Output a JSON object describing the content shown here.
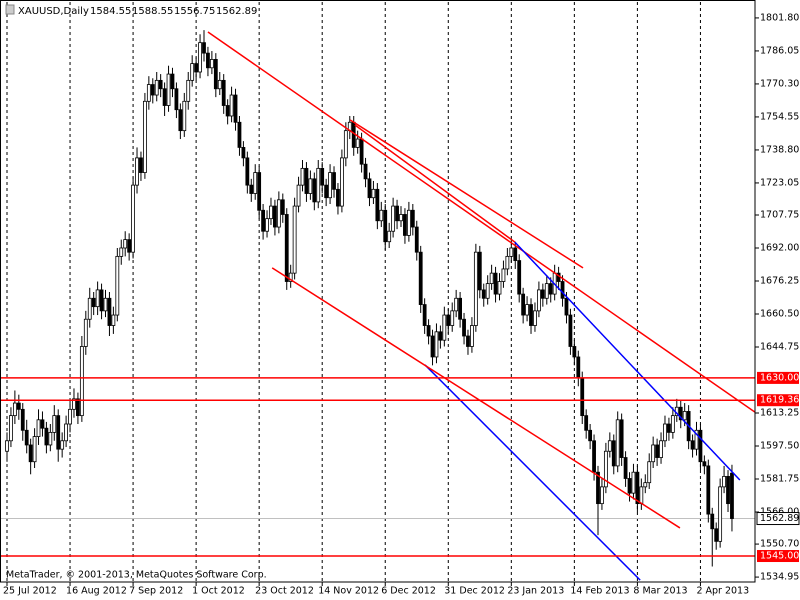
{
  "chart_data": {
    "type": "candlestick",
    "symbol": "XAUUSD,Daily",
    "copyright": "MetaTrader, © 2001-2013, MetaQuotes Software Corp.",
    "ylim": [
      1532.6,
      1809.4
    ],
    "yticks": [
      {
        "value": 1801.8,
        "label": "1801.80"
      },
      1786.05,
      {
        "value": 1770.3,
        "label": "1770.30"
      },
      1754.55,
      {
        "value": 1738.8,
        "label": "1738.80"
      },
      1723.05,
      1707.75,
      {
        "value": 1692,
        "label": "1692.00"
      },
      1676.25,
      {
        "value": 1660.5,
        "label": "1660.50"
      },
      1644.75,
      1613.25,
      {
        "value": 1597.5,
        "label": "1597.50"
      },
      1581.75,
      {
        "value": 1566,
        "label": "1566.00"
      },
      {
        "value": 1550.7,
        "label": "1550.70"
      },
      1534.95
    ],
    "xlabels": [
      {
        "index": 0,
        "label": "25 Jul 2012"
      },
      {
        "index": 16,
        "label": "16 Aug 2012"
      },
      {
        "index": 32,
        "label": "7 Sep 2012"
      },
      {
        "index": 48,
        "label": "1 Oct 2012"
      },
      {
        "index": 64,
        "label": "23 Oct 2012"
      },
      {
        "index": 80,
        "label": "14 Nov 2012"
      },
      {
        "index": 96,
        "label": "6 Dec 2012"
      },
      {
        "index": 112,
        "label": "31 Dec 2012"
      },
      {
        "index": 128,
        "label": "23 Jan 2013"
      },
      {
        "index": 144,
        "label": "14 Feb 2013"
      },
      {
        "index": 160,
        "label": "8 Mar 2013"
      },
      {
        "index": 176,
        "label": "2 Apr 2013"
      }
    ],
    "hlines": [
      {
        "value": 1630,
        "label": "1630.00",
        "color": "#ff0000"
      },
      {
        "value": 1619.36,
        "label": "1619.36",
        "color": "#ff0000"
      },
      {
        "value": 1545,
        "label": "1545.00",
        "color": "#ff0000"
      }
    ],
    "last": {
      "value": 1562.89,
      "label": "1562.89",
      "color": "#c0c0c0"
    },
    "lines": [
      {
        "color": "#ff0000",
        "points": [
          [
            51,
            1795.1
          ],
          [
            189.8,
            1613.7
          ]
        ]
      },
      {
        "color": "#ff0000",
        "points": [
          [
            87.1,
            1753.1
          ],
          [
            146.2,
            1682.5
          ]
        ]
      },
      {
        "color": "#ff0000",
        "points": [
          [
            88.3,
            1750.7
          ],
          [
            128.9,
            1694.8
          ]
        ]
      },
      {
        "color": "#0000ff",
        "points": [
          [
            128.9,
            1694.8
          ],
          [
            186,
            1581.3
          ]
        ]
      },
      {
        "color": "#0000ff",
        "points": [
          [
            106.1,
            1636.2
          ],
          [
            160.7,
            1533.5
          ]
        ]
      },
      {
        "color": "#ff0000",
        "points": [
          [
            67.3,
            1682.5
          ],
          [
            170.8,
            1558.4
          ]
        ]
      }
    ],
    "ohlc": [
      [
        1595,
        1604,
        1590,
        1600
      ],
      [
        1600,
        1616,
        1597,
        1612
      ],
      [
        1612,
        1624,
        1608,
        1618
      ],
      [
        1618,
        1622,
        1610,
        1615
      ],
      [
        1615,
        1618,
        1600,
        1605
      ],
      [
        1605,
        1610,
        1594,
        1598
      ],
      [
        1598,
        1601,
        1584,
        1590
      ],
      [
        1590,
        1606,
        1587,
        1602
      ],
      [
        1602,
        1615,
        1598,
        1610
      ],
      [
        1610,
        1614,
        1602,
        1606
      ],
      [
        1606,
        1609,
        1594,
        1598
      ],
      [
        1598,
        1608,
        1595,
        1604
      ],
      [
        1604,
        1617,
        1600,
        1612
      ],
      [
        1612,
        1615,
        1590,
        1596
      ],
      [
        1596,
        1604,
        1592,
        1600
      ],
      [
        1600,
        1612,
        1597,
        1608
      ],
      [
        1608,
        1619,
        1604,
        1615
      ],
      [
        1615,
        1625,
        1611,
        1620
      ],
      [
        1620,
        1623,
        1608,
        1612
      ],
      [
        1612,
        1650,
        1609,
        1645
      ],
      [
        1645,
        1662,
        1641,
        1658
      ],
      [
        1658,
        1673,
        1654,
        1668
      ],
      [
        1668,
        1671,
        1660,
        1664
      ],
      [
        1664,
        1676,
        1660,
        1672
      ],
      [
        1672,
        1675,
        1658,
        1662
      ],
      [
        1662,
        1672,
        1659,
        1668
      ],
      [
        1668,
        1671,
        1650,
        1655
      ],
      [
        1655,
        1664,
        1651,
        1660
      ],
      [
        1660,
        1692,
        1657,
        1688
      ],
      [
        1688,
        1696,
        1684,
        1692
      ],
      [
        1692,
        1700,
        1688,
        1696
      ],
      [
        1696,
        1699,
        1686,
        1690
      ],
      [
        1690,
        1726,
        1687,
        1722
      ],
      [
        1722,
        1740,
        1718,
        1735
      ],
      [
        1735,
        1738,
        1724,
        1728
      ],
      [
        1728,
        1766,
        1725,
        1762
      ],
      [
        1762,
        1774,
        1758,
        1770
      ],
      [
        1770,
        1773,
        1761,
        1765
      ],
      [
        1765,
        1776,
        1762,
        1772
      ],
      [
        1772,
        1775,
        1764,
        1768
      ],
      [
        1768,
        1771,
        1755,
        1760
      ],
      [
        1760,
        1779,
        1757,
        1775
      ],
      [
        1775,
        1778,
        1764,
        1768
      ],
      [
        1768,
        1771,
        1754,
        1758
      ],
      [
        1758,
        1761,
        1744,
        1748
      ],
      [
        1748,
        1766,
        1745,
        1762
      ],
      [
        1762,
        1776,
        1758,
        1772
      ],
      [
        1772,
        1784,
        1769,
        1780
      ],
      [
        1780,
        1783,
        1772,
        1776
      ],
      [
        1776,
        1794,
        1773,
        1790
      ],
      [
        1790,
        1796,
        1781,
        1785
      ],
      [
        1785,
        1788,
        1774,
        1778
      ],
      [
        1778,
        1786,
        1775,
        1782
      ],
      [
        1782,
        1785,
        1764,
        1768
      ],
      [
        1768,
        1776,
        1765,
        1772
      ],
      [
        1772,
        1775,
        1756,
        1760
      ],
      [
        1760,
        1763,
        1751,
        1755
      ],
      [
        1755,
        1769,
        1752,
        1765
      ],
      [
        1765,
        1768,
        1748,
        1752
      ],
      [
        1752,
        1755,
        1736,
        1740
      ],
      [
        1740,
        1743,
        1731,
        1735
      ],
      [
        1735,
        1738,
        1718,
        1722
      ],
      [
        1722,
        1725,
        1714,
        1718
      ],
      [
        1718,
        1732,
        1715,
        1728
      ],
      [
        1728,
        1731,
        1706,
        1710
      ],
      [
        1710,
        1713,
        1696,
        1700
      ],
      [
        1700,
        1710,
        1697,
        1706
      ],
      [
        1706,
        1716,
        1703,
        1712
      ],
      [
        1712,
        1715,
        1698,
        1702
      ],
      [
        1702,
        1719,
        1699,
        1715
      ],
      [
        1715,
        1718,
        1704,
        1708
      ],
      [
        1708,
        1711,
        1672,
        1676
      ],
      [
        1676,
        1684,
        1673,
        1680
      ],
      [
        1680,
        1716,
        1677,
        1712
      ],
      [
        1712,
        1726,
        1709,
        1722
      ],
      [
        1722,
        1734,
        1719,
        1730
      ],
      [
        1730,
        1733,
        1714,
        1718
      ],
      [
        1718,
        1729,
        1715,
        1725
      ],
      [
        1725,
        1728,
        1710,
        1714
      ],
      [
        1714,
        1734,
        1711,
        1730
      ],
      [
        1730,
        1733,
        1718,
        1722
      ],
      [
        1722,
        1725,
        1712,
        1716
      ],
      [
        1716,
        1732,
        1713,
        1728
      ],
      [
        1728,
        1731,
        1716,
        1720
      ],
      [
        1720,
        1723,
        1708,
        1712
      ],
      [
        1712,
        1739,
        1709,
        1735
      ],
      [
        1735,
        1752,
        1731,
        1748
      ],
      [
        1748,
        1755,
        1744,
        1752
      ],
      [
        1752,
        1755,
        1736,
        1740
      ],
      [
        1740,
        1748,
        1737,
        1744
      ],
      [
        1744,
        1747,
        1728,
        1732
      ],
      [
        1732,
        1735,
        1721,
        1725
      ],
      [
        1725,
        1728,
        1712,
        1716
      ],
      [
        1716,
        1724,
        1713,
        1720
      ],
      [
        1720,
        1723,
        1701,
        1705
      ],
      [
        1705,
        1714,
        1702,
        1710
      ],
      [
        1710,
        1713,
        1691,
        1695
      ],
      [
        1695,
        1704,
        1692,
        1700
      ],
      [
        1700,
        1716,
        1697,
        1712
      ],
      [
        1712,
        1715,
        1701,
        1705
      ],
      [
        1705,
        1712,
        1702,
        1708
      ],
      [
        1708,
        1711,
        1694,
        1698
      ],
      [
        1698,
        1714,
        1695,
        1710
      ],
      [
        1710,
        1713,
        1698,
        1702
      ],
      [
        1702,
        1705,
        1686,
        1690
      ],
      [
        1690,
        1693,
        1661,
        1665
      ],
      [
        1665,
        1668,
        1651,
        1655
      ],
      [
        1655,
        1658,
        1646,
        1650
      ],
      [
        1650,
        1653,
        1636,
        1640
      ],
      [
        1640,
        1656,
        1637,
        1652
      ],
      [
        1652,
        1655,
        1644,
        1648
      ],
      [
        1648,
        1664,
        1645,
        1660
      ],
      [
        1660,
        1663,
        1651,
        1655
      ],
      [
        1655,
        1666,
        1652,
        1662
      ],
      [
        1662,
        1672,
        1659,
        1668
      ],
      [
        1668,
        1671,
        1654,
        1658
      ],
      [
        1658,
        1661,
        1646,
        1650
      ],
      [
        1650,
        1653,
        1641,
        1645
      ],
      [
        1645,
        1659,
        1642,
        1655
      ],
      [
        1655,
        1694,
        1652,
        1690
      ],
      [
        1690,
        1693,
        1668,
        1672
      ],
      [
        1672,
        1675,
        1664,
        1668
      ],
      [
        1668,
        1679,
        1665,
        1675
      ],
      [
        1675,
        1684,
        1672,
        1680
      ],
      [
        1680,
        1683,
        1666,
        1670
      ],
      [
        1670,
        1680,
        1667,
        1676
      ],
      [
        1676,
        1686,
        1673,
        1682
      ],
      [
        1682,
        1692,
        1679,
        1688
      ],
      [
        1688,
        1696,
        1685,
        1692
      ],
      [
        1692,
        1695,
        1682,
        1686
      ],
      [
        1686,
        1689,
        1666,
        1670
      ],
      [
        1670,
        1673,
        1656,
        1660
      ],
      [
        1660,
        1669,
        1657,
        1665
      ],
      [
        1665,
        1668,
        1651,
        1655
      ],
      [
        1655,
        1666,
        1652,
        1662
      ],
      [
        1662,
        1676,
        1659,
        1672
      ],
      [
        1672,
        1675,
        1664,
        1668
      ],
      [
        1668,
        1679,
        1665,
        1675
      ],
      [
        1675,
        1678,
        1666,
        1670
      ],
      [
        1670,
        1684,
        1667,
        1680
      ],
      [
        1680,
        1683,
        1672,
        1676
      ],
      [
        1676,
        1679,
        1664,
        1668
      ],
      [
        1668,
        1671,
        1656,
        1660
      ],
      [
        1660,
        1663,
        1641,
        1645
      ],
      [
        1645,
        1648,
        1636,
        1640
      ],
      [
        1640,
        1643,
        1626,
        1630
      ],
      [
        1630,
        1633,
        1608,
        1612
      ],
      [
        1612,
        1615,
        1601,
        1605
      ],
      [
        1605,
        1608,
        1596,
        1600
      ],
      [
        1600,
        1603,
        1581,
        1585
      ],
      [
        1585,
        1588,
        1555,
        1570
      ],
      [
        1570,
        1582,
        1567,
        1578
      ],
      [
        1578,
        1599,
        1575,
        1595
      ],
      [
        1595,
        1604,
        1592,
        1600
      ],
      [
        1600,
        1603,
        1584,
        1588
      ],
      [
        1588,
        1614,
        1585,
        1610
      ],
      [
        1610,
        1613,
        1588,
        1592
      ],
      [
        1592,
        1595,
        1578,
        1582
      ],
      [
        1582,
        1585,
        1571,
        1575
      ],
      [
        1575,
        1589,
        1572,
        1585
      ],
      [
        1585,
        1588,
        1566,
        1570
      ],
      [
        1570,
        1582,
        1567,
        1578
      ],
      [
        1578,
        1584,
        1575,
        1580
      ],
      [
        1580,
        1594,
        1577,
        1590
      ],
      [
        1590,
        1602,
        1587,
        1598
      ],
      [
        1598,
        1601,
        1588,
        1592
      ],
      [
        1592,
        1604,
        1589,
        1600
      ],
      [
        1600,
        1612,
        1597,
        1608
      ],
      [
        1608,
        1611,
        1600,
        1604
      ],
      [
        1604,
        1616,
        1601,
        1612
      ],
      [
        1612,
        1620,
        1609,
        1616
      ],
      [
        1616,
        1619,
        1606,
        1610
      ],
      [
        1610,
        1618,
        1607,
        1614
      ],
      [
        1614,
        1617,
        1596,
        1600
      ],
      [
        1600,
        1603,
        1592,
        1596
      ],
      [
        1596,
        1609,
        1593,
        1605
      ],
      [
        1605,
        1608,
        1586,
        1590
      ],
      [
        1590,
        1593,
        1584,
        1588
      ],
      [
        1588,
        1591,
        1561,
        1565
      ],
      [
        1565,
        1568,
        1540,
        1558
      ],
      [
        1558,
        1561,
        1548,
        1552
      ],
      [
        1552,
        1582,
        1549,
        1578
      ],
      [
        1578,
        1588,
        1575,
        1583
      ],
      [
        1583,
        1586,
        1566,
        1570
      ],
      [
        1584.55,
        1588.55,
        1556.75,
        1562.89
      ]
    ]
  }
}
